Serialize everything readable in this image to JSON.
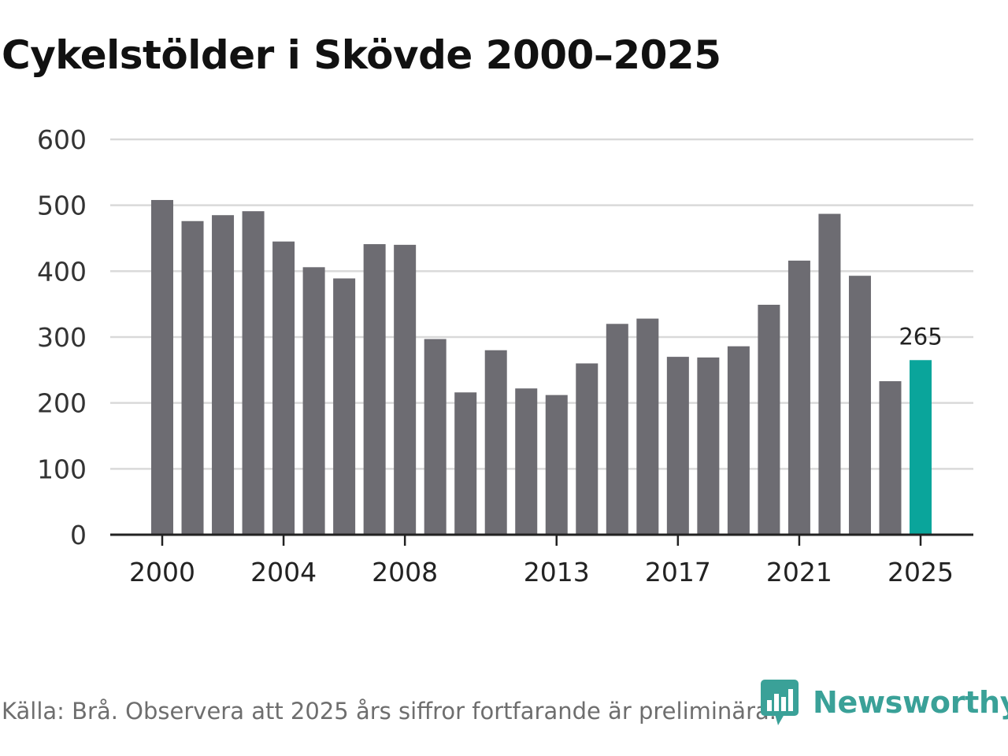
{
  "chart_data": {
    "type": "bar",
    "title": "Cykelstölder i Skövde 2000–2025",
    "categories": [
      "2000",
      "2001",
      "2002",
      "2003",
      "2004",
      "2005",
      "2006",
      "2007",
      "2008",
      "2009",
      "2010",
      "2011",
      "2012",
      "2013",
      "2014",
      "2015",
      "2016",
      "2017",
      "2018",
      "2019",
      "2020",
      "2021",
      "2022",
      "2023",
      "2024",
      "2025"
    ],
    "values": [
      508,
      476,
      485,
      491,
      445,
      406,
      389,
      441,
      440,
      297,
      216,
      280,
      222,
      212,
      260,
      320,
      328,
      270,
      269,
      286,
      349,
      416,
      487,
      393,
      233,
      265
    ],
    "highlight_index": 25,
    "colors": {
      "bar": "#6d6c72",
      "highlight": "#0aa59b",
      "grid": "#d9d9d9",
      "axis": "#222222"
    },
    "ylim": [
      0,
      600
    ],
    "yticks": [
      0,
      100,
      200,
      300,
      400,
      500,
      600
    ],
    "xticks": [
      "2000",
      "2004",
      "2008",
      "2013",
      "2017",
      "2021",
      "2025"
    ],
    "data_labels": [
      {
        "category": "2025",
        "text": "265"
      }
    ],
    "xlabel": "",
    "ylabel": "",
    "grid": true
  },
  "footer": {
    "source": "Källa: Brå. Observera att 2025 års siffror fortfarande är preliminära."
  },
  "brand": {
    "name": "Newsworthy",
    "icon": "newsworthy-logo-icon",
    "color": "#3aa198"
  }
}
